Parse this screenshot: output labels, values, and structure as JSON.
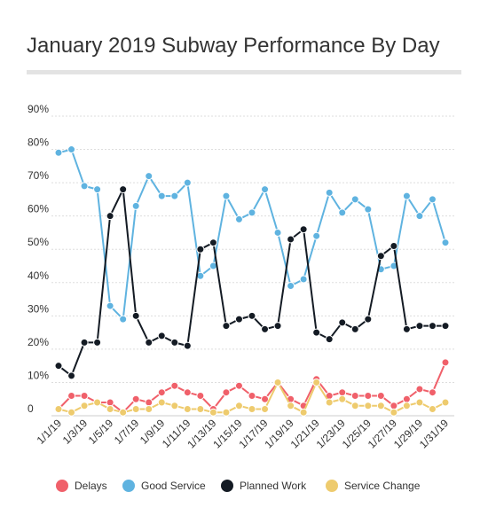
{
  "chart_data": {
    "type": "line",
    "title": "January 2019 Subway Performance By Day",
    "xlabel": "",
    "ylabel": "",
    "ylim": [
      0,
      90
    ],
    "yticks": [
      0,
      10,
      20,
      30,
      40,
      50,
      60,
      70,
      80,
      90
    ],
    "ytick_labels": [
      "0",
      "10%",
      "20%",
      "30%",
      "40%",
      "50%",
      "60%",
      "70%",
      "80%",
      "90%"
    ],
    "x": [
      "1/1/19",
      "1/2/19",
      "1/3/19",
      "1/4/19",
      "1/5/19",
      "1/6/19",
      "1/7/19",
      "1/8/19",
      "1/9/19",
      "1/10/19",
      "1/11/19",
      "1/12/19",
      "1/13/19",
      "1/14/19",
      "1/15/19",
      "1/16/19",
      "1/17/19",
      "1/18/19",
      "1/19/19",
      "1/20/19",
      "1/21/19",
      "1/22/19",
      "1/23/19",
      "1/24/19",
      "1/25/19",
      "1/26/19",
      "1/27/19",
      "1/28/19",
      "1/29/19",
      "1/30/19",
      "1/31/19"
    ],
    "xtick_labels": [
      "1/1/19",
      "1/3/19",
      "1/5/19",
      "1/7/19",
      "1/9/19",
      "1/11/19",
      "1/13/19",
      "1/15/19",
      "1/17/19",
      "1/19/19",
      "1/21/19",
      "1/23/19",
      "1/25/19",
      "1/27/19",
      "1/29/19",
      "1/31/19"
    ],
    "grid": true,
    "legend_position": "bottom",
    "series": [
      {
        "name": "Delays",
        "color": "#f0606a",
        "values": [
          2,
          6,
          6,
          4,
          4,
          1,
          5,
          4,
          7,
          9,
          7,
          6,
          2,
          7,
          9,
          6,
          5,
          10,
          5,
          3,
          11,
          6,
          7,
          6,
          6,
          6,
          3,
          5,
          8,
          7,
          16
        ]
      },
      {
        "name": "Good Service",
        "color": "#5fb3e0",
        "values": [
          79,
          80,
          69,
          68,
          33,
          29,
          63,
          72,
          66,
          66,
          70,
          42,
          45,
          66,
          59,
          61,
          68,
          55,
          39,
          41,
          54,
          67,
          61,
          65,
          62,
          44,
          45,
          66,
          60,
          65,
          52
        ]
      },
      {
        "name": "Planned Work",
        "color": "#141b24",
        "values": [
          15,
          12,
          22,
          22,
          60,
          68,
          30,
          22,
          24,
          22,
          21,
          50,
          52,
          27,
          29,
          30,
          26,
          27,
          53,
          56,
          25,
          23,
          28,
          26,
          29,
          48,
          51,
          26,
          27,
          27,
          27
        ]
      },
      {
        "name": "Service Change",
        "color": "#eecb6e",
        "values": [
          2,
          1,
          3,
          4,
          2,
          1,
          2,
          2,
          4,
          3,
          2,
          2,
          1,
          1,
          3,
          2,
          2,
          10,
          3,
          1,
          10,
          4,
          5,
          3,
          3,
          3,
          1,
          3,
          4,
          2,
          4
        ]
      }
    ]
  }
}
